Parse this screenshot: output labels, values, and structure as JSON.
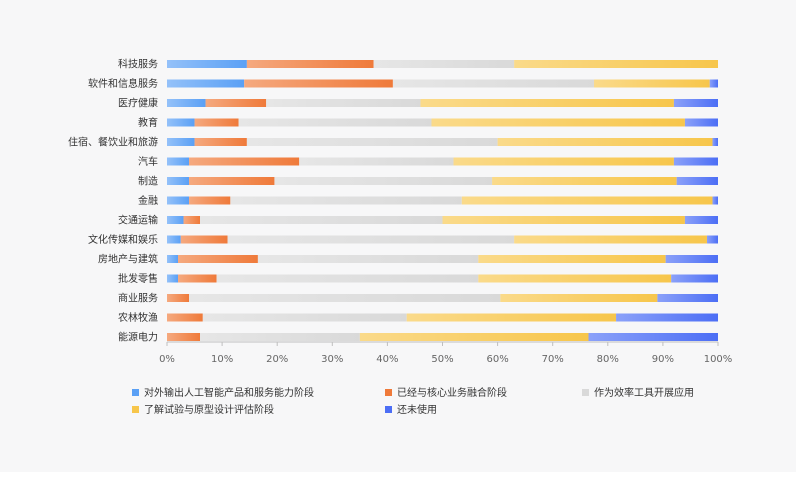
{
  "chart_data": {
    "type": "bar",
    "orientation": "horizontal",
    "stacked": true,
    "percent": true,
    "categories": [
      "科技服务",
      "软件和信息服务",
      "医疗健康",
      "教育",
      "住宿、餐饮业和旅游",
      "汽车",
      "制造",
      "金融",
      "交通运输",
      "文化传媒和娱乐",
      "房地产与建筑",
      "批发零售",
      "商业服务",
      "农林牧渔",
      "能源电力"
    ],
    "series": [
      {
        "name": "对外输出人工智能产品和服务能力阶段",
        "color": "#5aa0f5",
        "values": [
          14.5,
          14,
          7,
          5,
          5,
          4,
          4,
          4,
          3,
          2.5,
          2,
          2,
          0,
          0,
          0
        ]
      },
      {
        "name": "已经与核心业务融合阶段",
        "color": "#ef7a3a",
        "values": [
          23,
          27,
          11,
          8,
          9.5,
          20,
          15.5,
          7.5,
          3,
          8.5,
          14.5,
          7,
          4,
          6.5,
          6
        ]
      },
      {
        "name": "作为效率工具开展应用",
        "color": "#d9d9d9",
        "values": [
          25.5,
          36.5,
          28,
          35,
          45.5,
          28,
          39.5,
          42,
          44,
          52,
          40,
          47.5,
          56.5,
          37,
          29
        ]
      },
      {
        "name": "了解试验与原型设计评估阶段",
        "color": "#f7c64b",
        "values": [
          37,
          21,
          46,
          46,
          39,
          40,
          33.5,
          45.5,
          44,
          35,
          34,
          35,
          28.5,
          38,
          41.5
        ]
      },
      {
        "name": "还未使用",
        "color": "#4c6ef5",
        "values": [
          0,
          1.5,
          8,
          6,
          1,
          8,
          7.5,
          1,
          6,
          2,
          9.5,
          8.5,
          11,
          18.5,
          23.5
        ]
      }
    ],
    "xlim": [
      0,
      100
    ],
    "x_ticks": [
      "0%",
      "10%",
      "20%",
      "30%",
      "40%",
      "50%",
      "60%",
      "70%",
      "80%",
      "90%",
      "100%"
    ],
    "grid": false,
    "legend_position": "bottom"
  }
}
